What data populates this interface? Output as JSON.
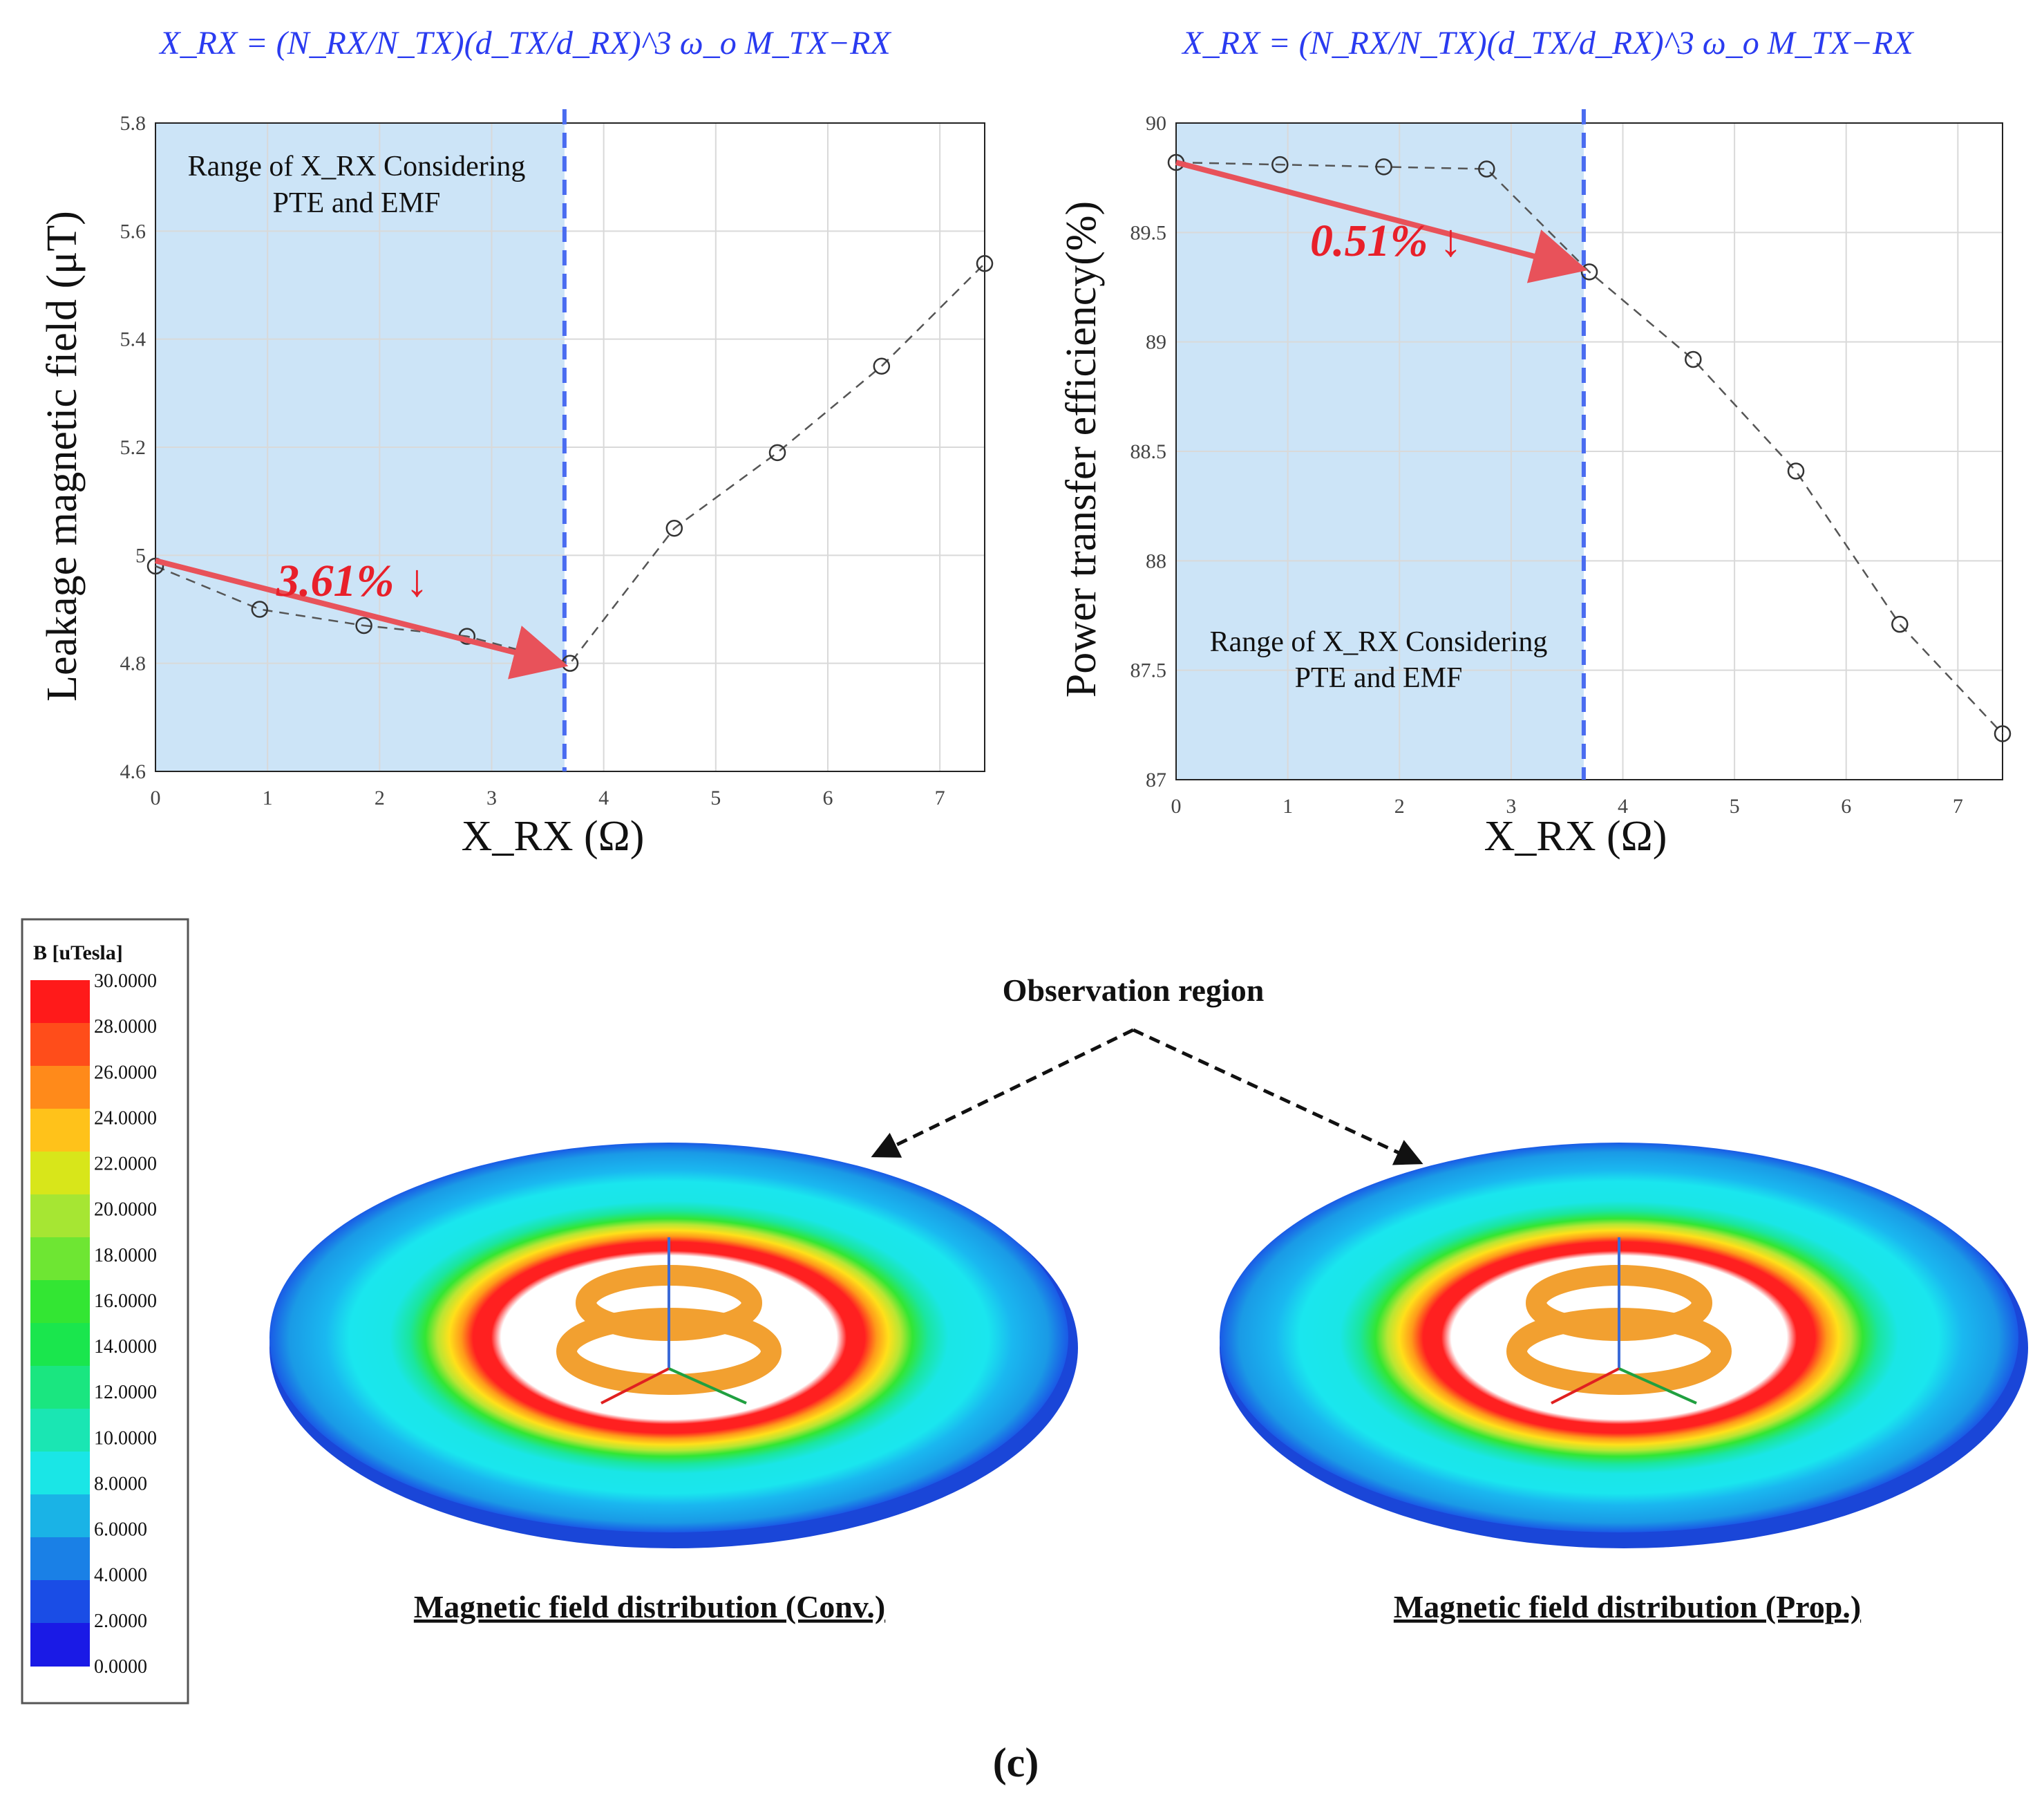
{
  "chart_data": [
    {
      "type": "line",
      "formula": "X_RX = (N_RX/N_TX)(d_TX/d_RX)^3 ω_o M_TX−RX",
      "range_label_line1": "Range of X_RX Considering",
      "range_label_line2": "PTE and EMF",
      "annotation": "3.61% ↓",
      "xlabel": "X_RX (Ω)",
      "ylabel": "Leakage magnetic field (μT)",
      "xlim": [
        0,
        7.4
      ],
      "ylim": [
        4.6,
        5.8
      ],
      "xticks": [
        "0",
        "1",
        "2",
        "3",
        "4",
        "5",
        "6",
        "7"
      ],
      "yticks": [
        "4.6",
        "4.8",
        "5",
        "5.2",
        "5.4",
        "5.6",
        "5.8"
      ],
      "shaded_range": [
        0,
        3.65
      ],
      "threshold_x": 3.65,
      "x": [
        0,
        0.93,
        1.86,
        2.78,
        3.7,
        4.63,
        5.55,
        6.48,
        7.4
      ],
      "y": [
        4.98,
        4.9,
        4.87,
        4.85,
        4.8,
        5.05,
        5.19,
        5.35,
        5.54
      ],
      "arrow_from": [
        0,
        4.99
      ],
      "arrow_to": [
        3.65,
        4.8
      ]
    },
    {
      "type": "line",
      "formula": "X_RX = (N_RX/N_TX)(d_TX/d_RX)^3 ω_o M_TX−RX",
      "range_label_line1": "Range of X_RX Considering",
      "range_label_line2": "PTE and EMF",
      "annotation": "0.51% ↓",
      "xlabel": "X_RX (Ω)",
      "ylabel": "Power transfer efficiency(%)",
      "xlim": [
        0,
        7.4
      ],
      "ylim": [
        87,
        90
      ],
      "xticks": [
        "0",
        "1",
        "2",
        "3",
        "4",
        "5",
        "6",
        "7"
      ],
      "yticks": [
        "87",
        "87.5",
        "88",
        "88.5",
        "89",
        "89.5",
        "90"
      ],
      "shaded_range": [
        0,
        3.65
      ],
      "threshold_x": 3.65,
      "x": [
        0,
        0.93,
        1.86,
        2.78,
        3.7,
        4.63,
        5.55,
        6.48,
        7.4
      ],
      "y": [
        89.82,
        89.81,
        89.8,
        89.79,
        89.32,
        88.92,
        88.41,
        87.71,
        87.21
      ],
      "arrow_from": [
        0,
        89.82
      ],
      "arrow_to": [
        3.65,
        89.34
      ]
    }
  ],
  "colorbar": {
    "title": "B [uTesla]",
    "ticks": [
      "30.0000",
      "28.0000",
      "26.0000",
      "24.0000",
      "22.0000",
      "20.0000",
      "18.0000",
      "16.0000",
      "14.0000",
      "12.0000",
      "10.0000",
      "8.0000",
      "6.0000",
      "4.0000",
      "2.0000",
      "0.0000"
    ],
    "colors": [
      "#ff1a1a",
      "#ff4d1a",
      "#ff8a1a",
      "#ffc21a",
      "#d8e61a",
      "#a6e633",
      "#6ee633",
      "#33e633",
      "#1ae64d",
      "#1ae680",
      "#1ae6b3",
      "#1ae6e6",
      "#1ab3e6",
      "#1a80e6",
      "#1a4de6",
      "#1a1ae6"
    ]
  },
  "observation_label": "Observation region",
  "caption_conv": "Magnetic field distribution (Conv.)",
  "caption_prop": "Magnetic field distribution (Prop.)",
  "panel_label": "(c)"
}
